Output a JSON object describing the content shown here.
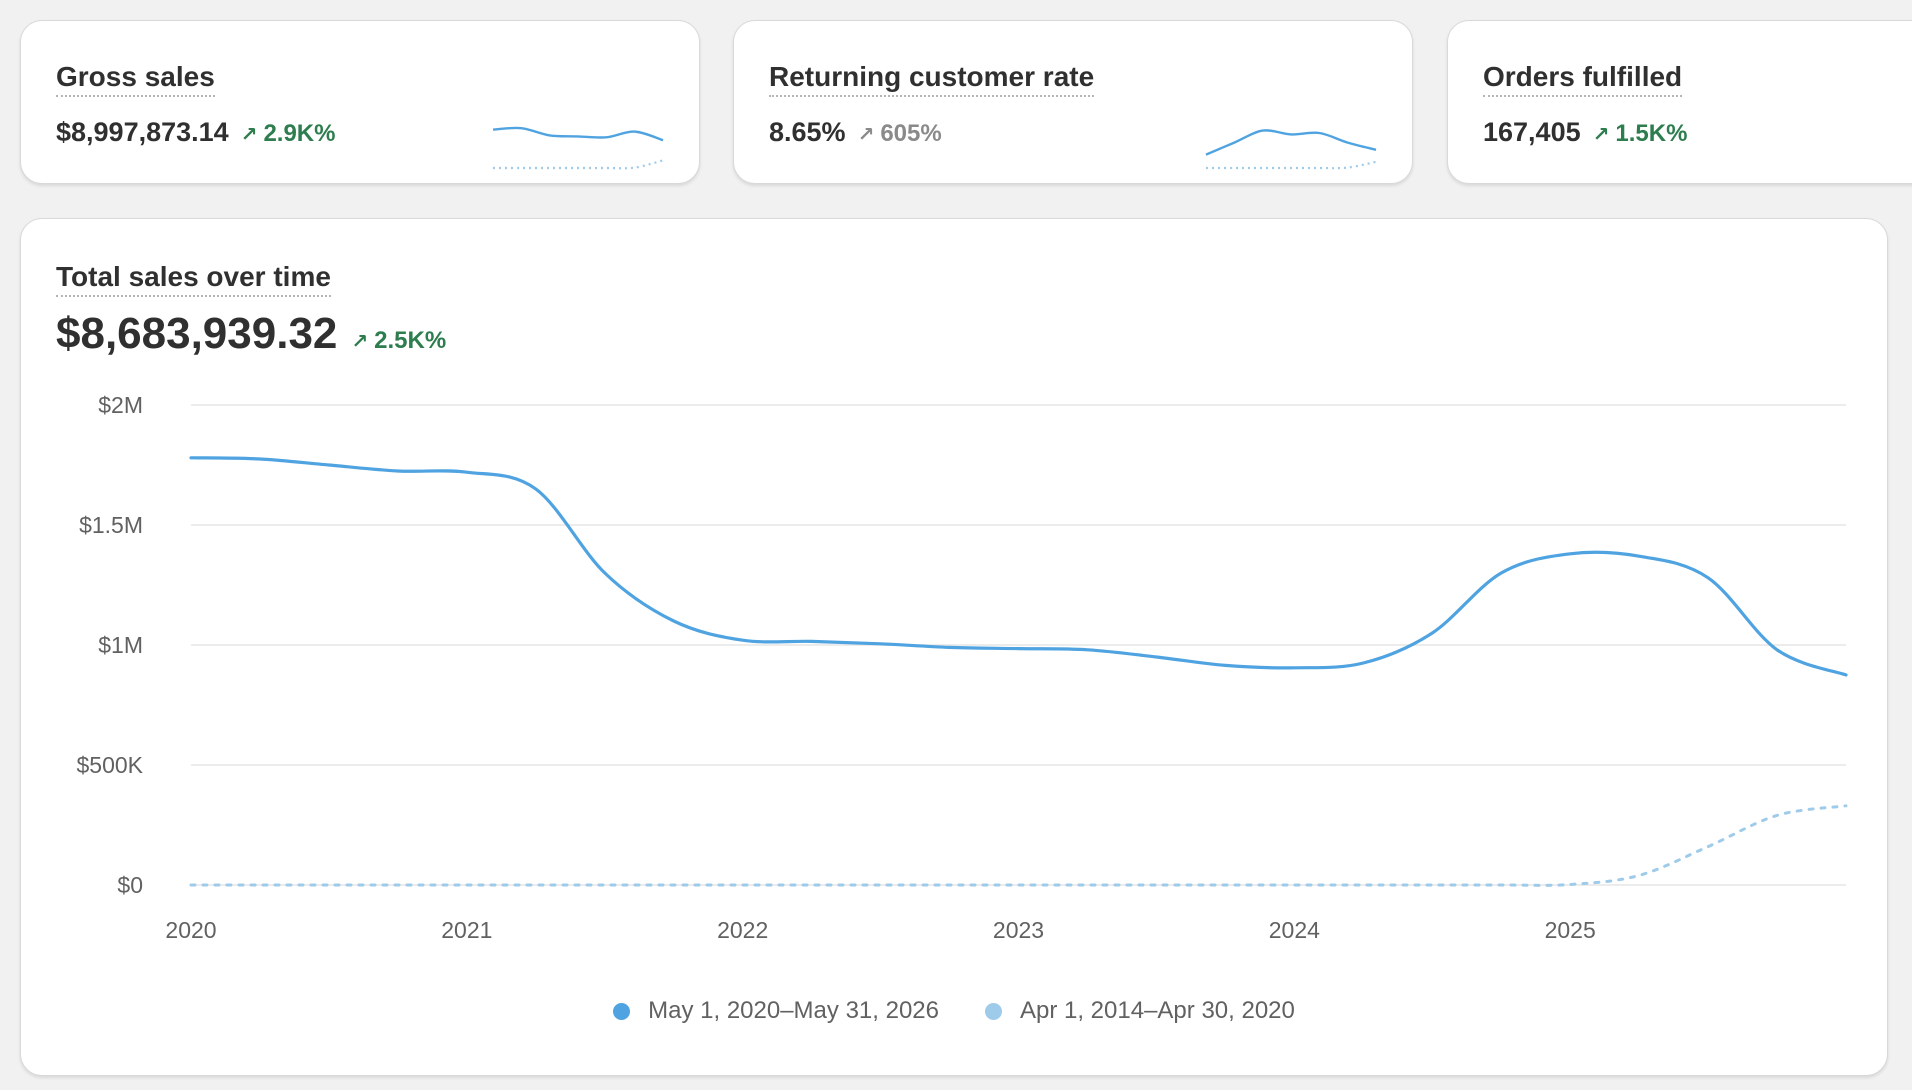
{
  "kpis": [
    {
      "title": "Gross sales",
      "value": "$8,997,873.14",
      "delta": "2.9K%",
      "delta_direction": "up",
      "spark_current": [
        0.82,
        0.85,
        0.7,
        0.68,
        0.66,
        0.78,
        0.6
      ],
      "spark_previous": [
        0.02,
        0.02,
        0.02,
        0.02,
        0.02,
        0.03,
        0.18
      ]
    },
    {
      "title": "Returning customer rate",
      "value": "8.65%",
      "delta": "605%",
      "delta_direction": "neutral",
      "spark_current": [
        0.3,
        0.55,
        0.8,
        0.72,
        0.75,
        0.55,
        0.4
      ],
      "spark_previous": [
        0.02,
        0.02,
        0.02,
        0.02,
        0.02,
        0.03,
        0.15
      ]
    },
    {
      "title": "Orders fulfilled",
      "value": "167,405",
      "delta": "1.5K%",
      "delta_direction": "up"
    }
  ],
  "main_chart": {
    "title": "Total sales over time",
    "value": "$8,683,939.32",
    "delta": "2.5K%"
  },
  "icons": {
    "delta_up": "arrow-up-right-icon",
    "legend_marker": "circle-icon"
  },
  "colors": {
    "current_series": "#4fa3e0",
    "previous_series": "#9fcbea",
    "positive_delta": "#2e7d4f",
    "neutral_delta": "#8a8a8a"
  },
  "chart_data": {
    "type": "line",
    "x": [
      2020,
      2020.25,
      2020.5,
      2020.75,
      2021,
      2021.25,
      2021.5,
      2021.75,
      2022,
      2022.25,
      2022.5,
      2022.75,
      2023,
      2023.25,
      2023.5,
      2023.75,
      2024,
      2024.25,
      2024.5,
      2024.75,
      2025,
      2025.25,
      2025.5,
      2025.75,
      2026
    ],
    "x_ticks": [
      "2020",
      "2021",
      "2022",
      "2023",
      "2024",
      "2025"
    ],
    "y_ticks": [
      "$0",
      "$500K",
      "$1M",
      "$1.5M",
      "$2M"
    ],
    "ylim": [
      0,
      2000000
    ],
    "grid": true,
    "legend_position": "bottom-center",
    "series": [
      {
        "name": "May 1, 2020–May 31, 2026",
        "style": "solid",
        "values": [
          1780000,
          1775000,
          1750000,
          1725000,
          1720000,
          1650000,
          1300000,
          1100000,
          1020000,
          1015000,
          1005000,
          990000,
          985000,
          980000,
          950000,
          915000,
          905000,
          925000,
          1050000,
          1300000,
          1380000,
          1370000,
          1280000,
          980000,
          875000
        ]
      },
      {
        "name": "Apr 1, 2014–Apr 30, 2020",
        "style": "dashed",
        "values": [
          0,
          0,
          0,
          0,
          0,
          0,
          0,
          0,
          0,
          0,
          0,
          0,
          0,
          0,
          0,
          0,
          0,
          0,
          0,
          0,
          2000,
          40000,
          160000,
          290000,
          330000
        ]
      }
    ]
  }
}
